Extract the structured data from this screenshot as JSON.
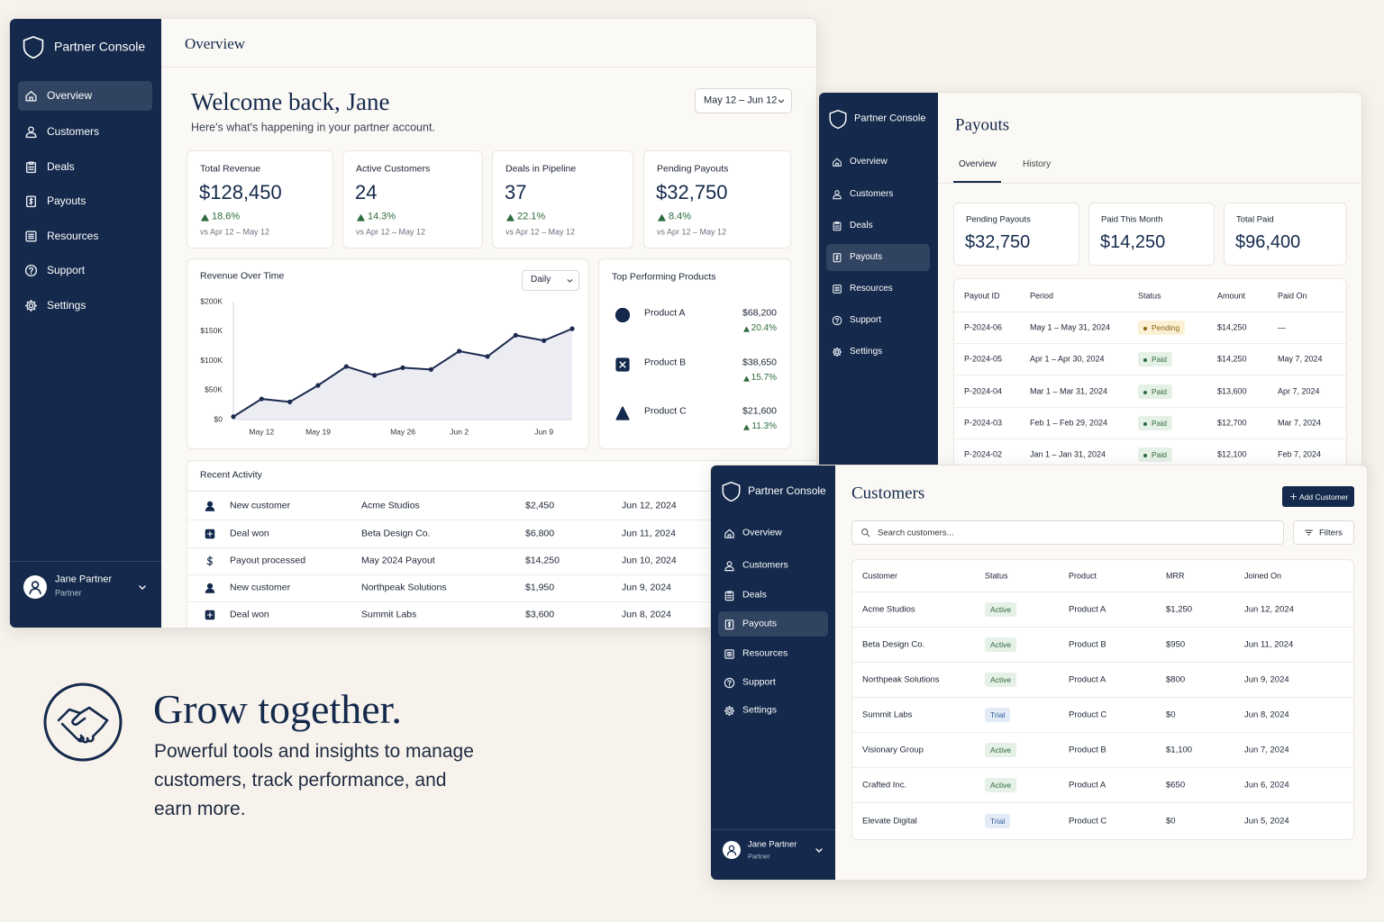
{
  "chart_data": {
    "type": "line",
    "title": "Revenue Over Time",
    "interval": "Daily",
    "categories": [
      null,
      "May 12",
      null,
      "May 19",
      null,
      null,
      "May 26",
      null,
      "Jun 2",
      null,
      null,
      "Jun 9",
      null
    ],
    "values": [
      5000,
      35000,
      30000,
      58000,
      90000,
      75000,
      88000,
      85000,
      116000,
      107000,
      143000,
      134000,
      154000
    ],
    "color": "#1b2a4e",
    "grid": false,
    "ylim": [
      0,
      200000
    ],
    "yticks": [
      {
        "value": 0,
        "label": "$0"
      },
      {
        "value": 50000,
        "label": "$50K"
      },
      {
        "value": 100000,
        "label": "$100K"
      },
      {
        "value": 150000,
        "label": "$150K"
      },
      {
        "value": 200000,
        "label": "$200K"
      }
    ]
  },
  "overview": {
    "brand": "Partner Console",
    "nav": [
      "Overview",
      "Customers",
      "Deals",
      "Payouts",
      "Resources",
      "Support",
      "Settings"
    ],
    "user": {
      "name": "Jane Partner",
      "role": "Partner"
    },
    "header": "Overview",
    "welcome": "Welcome back, Jane",
    "intro": "Here's what's happening in your partner account.",
    "date_range": "May 12 – Jun 12",
    "kpis": [
      {
        "label": "Total Revenue",
        "value": "$128,450",
        "change": "18.6%",
        "compare": "vs Apr 12 – May 12"
      },
      {
        "label": "Active Customers",
        "value": "24",
        "change": "14.3%",
        "compare": "vs Apr 12 – May 12"
      },
      {
        "label": "Deals in Pipeline",
        "value": "37",
        "change": "22.1%",
        "compare": "vs Apr 12 – May 12"
      },
      {
        "label": "Pending Payouts",
        "value": "$32,750",
        "change": "8.4%",
        "compare": "vs Apr 12 – May 12"
      }
    ],
    "top_products": {
      "title": "Top Performing Products",
      "items": [
        {
          "name": "Product A",
          "revenue": "$68,200",
          "change": "20.4%"
        },
        {
          "name": "Product B",
          "revenue": "$38,650",
          "change": "15.7%"
        },
        {
          "name": "Product C",
          "revenue": "$21,600",
          "change": "11.3%"
        }
      ]
    },
    "recent_activity": {
      "title": "Recent Activity",
      "rows": [
        [
          "New customer",
          "Acme Studios",
          "$2,450",
          "Jun 12, 2024"
        ],
        [
          "Deal won",
          "Beta Design Co.",
          "$6,800",
          "Jun 11, 2024"
        ],
        [
          "Payout processed",
          "May 2024 Payout",
          "$14,250",
          "Jun 10, 2024"
        ],
        [
          "New customer",
          "Northpeak Solutions",
          "$1,950",
          "Jun 9, 2024"
        ],
        [
          "Deal won",
          "Summit Labs",
          "$3,600",
          "Jun 8, 2024"
        ]
      ]
    }
  },
  "payouts": {
    "brand": "Partner Console",
    "nav": [
      "Overview",
      "Customers",
      "Deals",
      "Payouts",
      "Resources",
      "Support",
      "Settings"
    ],
    "header": "Payouts",
    "tabs": [
      "Overview",
      "History"
    ],
    "stats": [
      {
        "label": "Pending Payouts",
        "value": "$32,750"
      },
      {
        "label": "Paid This Month",
        "value": "$14,250"
      },
      {
        "label": "Total Paid",
        "value": "$96,400"
      }
    ],
    "table": {
      "columns": [
        "Payout ID",
        "Period",
        "Status",
        "Amount",
        "Paid On"
      ],
      "status_colors": {
        "Pending": [
          "#fcf0d4",
          "#8a6514"
        ],
        "Paid": [
          "#e5f0e6",
          "#2e6b3e"
        ]
      },
      "rows": [
        [
          "P-2024-06",
          "May 1 – May 31, 2024",
          "Pending",
          "$14,250",
          "—"
        ],
        [
          "P-2024-05",
          "Apr 1 – Apr 30, 2024",
          "Paid",
          "$14,250",
          "May 7, 2024"
        ],
        [
          "P-2024-04",
          "Mar 1 – Mar 31, 2024",
          "Paid",
          "$13,600",
          "Apr 7, 2024"
        ],
        [
          "P-2024-03",
          "Feb 1 – Feb 29, 2024",
          "Paid",
          "$12,700",
          "Mar 7, 2024"
        ],
        [
          "P-2024-02",
          "Jan 1 – Jan 31, 2024",
          "Paid",
          "$12,100",
          "Feb 7, 2024"
        ]
      ]
    }
  },
  "customers": {
    "brand": "Partner Console",
    "nav": [
      "Overview",
      "Customers",
      "Deals",
      "Payouts",
      "Resources",
      "Support",
      "Settings"
    ],
    "user": {
      "name": "Jane Partner",
      "role": "Partner"
    },
    "header": "Customers",
    "add_button": "Add Customer",
    "search_placeholder": "Search customers...",
    "filters": "Filters",
    "table": {
      "columns": [
        "Customer",
        "Status",
        "Product",
        "MRR",
        "Joined On"
      ],
      "status_colors": {
        "Active": [
          "#e5f0e6",
          "#2e6b3e"
        ],
        "Trial": [
          "#e3ebf7",
          "#2d5a9a"
        ]
      },
      "rows": [
        [
          "Acme Studios",
          "Active",
          "Product A",
          "$1,250",
          "Jun 12, 2024"
        ],
        [
          "Beta Design Co.",
          "Active",
          "Product B",
          "$950",
          "Jun 11, 2024"
        ],
        [
          "Northpeak Solutions",
          "Active",
          "Product A",
          "$800",
          "Jun 9, 2024"
        ],
        [
          "Summit Labs",
          "Trial",
          "Product C",
          "$0",
          "Jun 8, 2024"
        ],
        [
          "Visionary Group",
          "Active",
          "Product B",
          "$1,100",
          "Jun 7, 2024"
        ],
        [
          "Crafted Inc.",
          "Active",
          "Product A",
          "$650",
          "Jun 6, 2024"
        ],
        [
          "Elevate Digital",
          "Trial",
          "Product C",
          "$0",
          "Jun 5, 2024"
        ]
      ]
    }
  },
  "hero": {
    "headline": "Grow together.",
    "body": "Powerful tools and insights to manage customers, track performance, and earn more."
  }
}
